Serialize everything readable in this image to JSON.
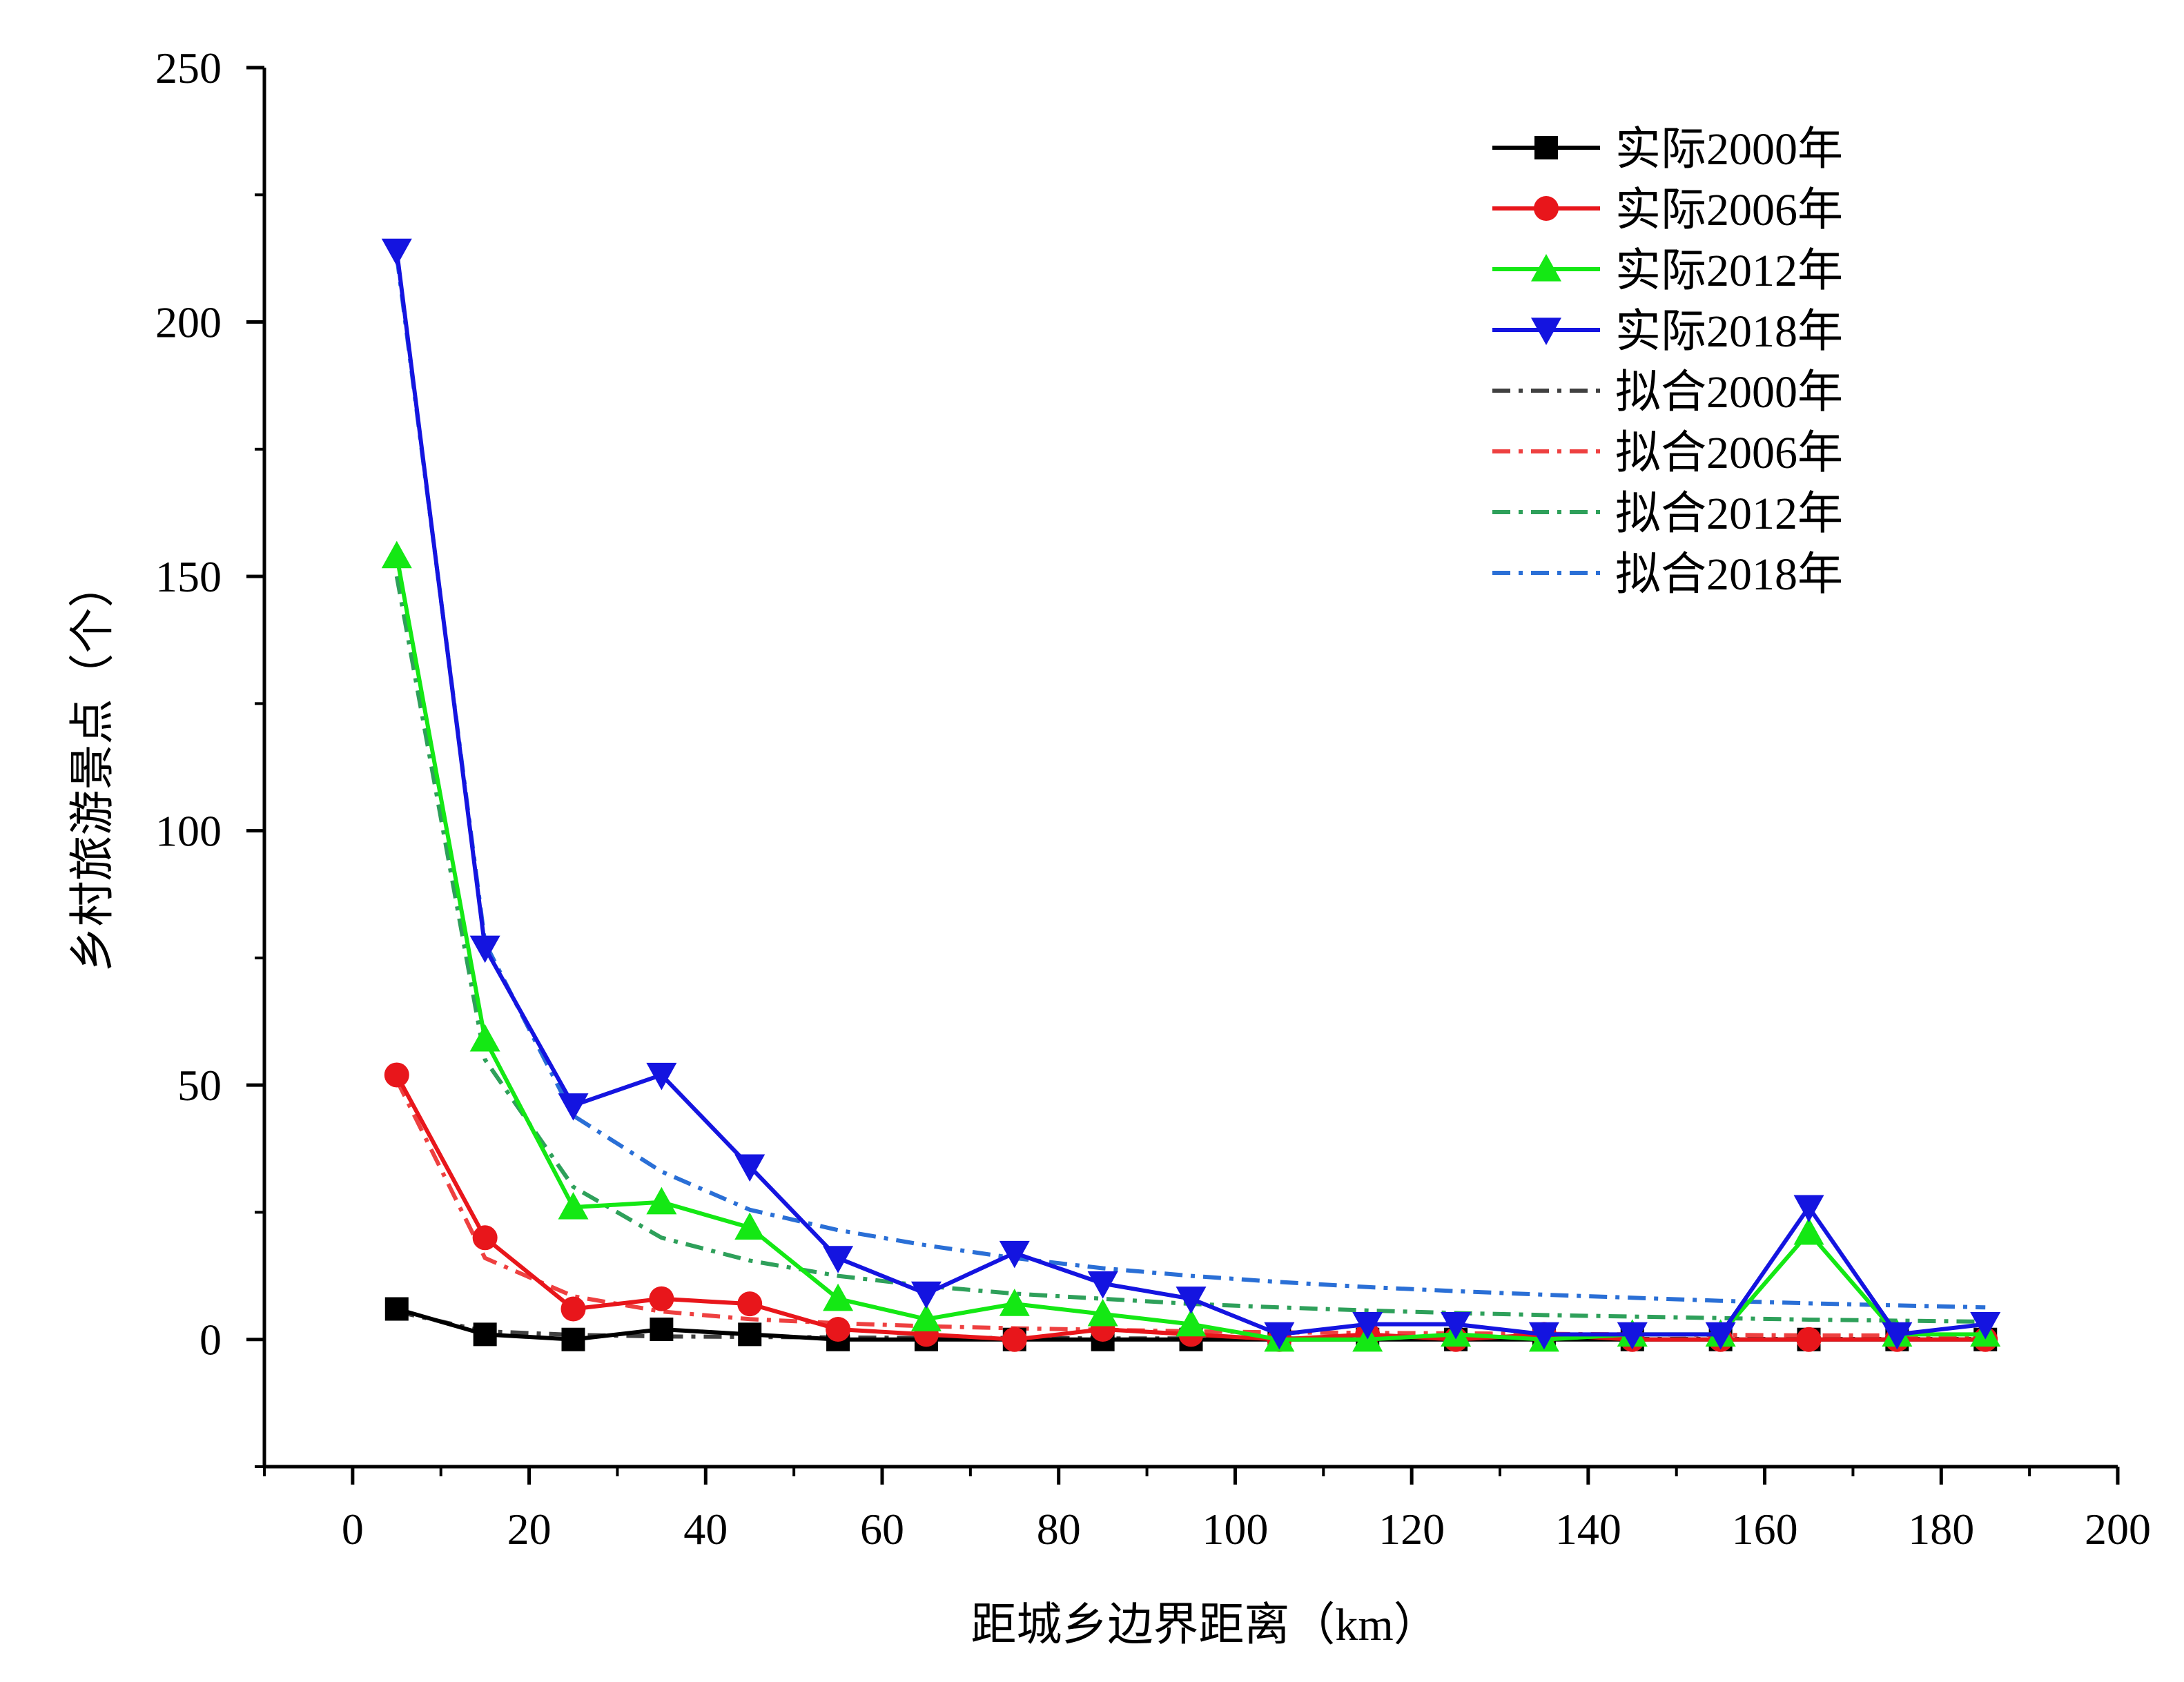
{
  "chart_data": {
    "type": "line",
    "xlabel": "距城乡边界距离（km）",
    "ylabel": "乡村旅游景点（个）",
    "xlim": [
      -10,
      200
    ],
    "ylim": [
      -25,
      250
    ],
    "xticks": [
      0,
      20,
      40,
      60,
      80,
      100,
      120,
      140,
      160,
      180,
      200
    ],
    "yticks": [
      0,
      50,
      100,
      150,
      200,
      250
    ],
    "x": [
      5,
      15,
      25,
      35,
      45,
      55,
      65,
      75,
      85,
      95,
      105,
      115,
      125,
      135,
      145,
      155,
      165,
      175,
      185
    ],
    "grid": false,
    "legend_position": "top-right",
    "series": [
      {
        "name": "实际2000年",
        "style": "solid",
        "marker": "square",
        "color": "#000000",
        "values": [
          6,
          1,
          0,
          2,
          1,
          0,
          0,
          0,
          0,
          0,
          0,
          0,
          0,
          0,
          0,
          0,
          0,
          0,
          0
        ]
      },
      {
        "name": "实际2006年",
        "style": "solid",
        "marker": "circle",
        "color": "#e8161b",
        "values": [
          52,
          20,
          6,
          8,
          7,
          2,
          1,
          0,
          2,
          1,
          0,
          1,
          0,
          1,
          0,
          0,
          0,
          0,
          0
        ]
      },
      {
        "name": "实际2012年",
        "style": "solid",
        "marker": "triangle-up",
        "color": "#14e814",
        "values": [
          154,
          59,
          26,
          27,
          22,
          8,
          4,
          7,
          5,
          3,
          0,
          0,
          1,
          0,
          1,
          1,
          21,
          1,
          1
        ]
      },
      {
        "name": "实际2018年",
        "style": "solid",
        "marker": "triangle-down",
        "color": "#1414e0",
        "values": [
          214,
          77,
          46,
          52,
          34,
          16,
          9,
          17,
          11,
          8,
          1,
          3,
          3,
          1,
          1,
          1,
          26,
          1,
          3
        ]
      },
      {
        "name": "拟合2000年",
        "style": "dashdot",
        "marker": "none",
        "color": "#404040",
        "values": [
          5.5,
          1.6,
          0.9,
          0.6,
          0.5,
          0.4,
          0.3,
          0.3,
          0.2,
          0.2,
          0.2,
          0.2,
          0.2,
          0.2,
          0.1,
          0.1,
          0.1,
          0.1,
          0.1
        ]
      },
      {
        "name": "拟合2006年",
        "style": "dashdot",
        "marker": "none",
        "color": "#ee4040",
        "values": [
          51,
          16,
          8.5,
          5.5,
          4,
          3.2,
          2.6,
          2.2,
          1.9,
          1.6,
          1.4,
          1.3,
          1.2,
          1.1,
          1.0,
          0.9,
          0.8,
          0.8,
          0.7
        ]
      },
      {
        "name": "拟合2012年",
        "style": "dashdot",
        "marker": "none",
        "color": "#2ea05a",
        "values": [
          150,
          55,
          30,
          20,
          15.5,
          12.5,
          10.5,
          9,
          8,
          7,
          6.3,
          5.7,
          5.2,
          4.8,
          4.5,
          4.2,
          3.9,
          3.7,
          3.5
        ]
      },
      {
        "name": "拟合2018年",
        "style": "dashdot",
        "marker": "none",
        "color": "#2a6fd6",
        "values": [
          213,
          78,
          44,
          33,
          25.5,
          21.5,
          18.5,
          16,
          14,
          12.5,
          11.3,
          10.3,
          9.5,
          8.8,
          8.2,
          7.6,
          7.1,
          6.7,
          6.3
        ]
      }
    ]
  }
}
